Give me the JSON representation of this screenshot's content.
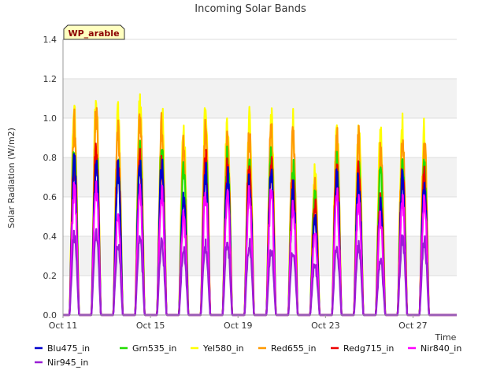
{
  "chart_data": {
    "type": "line",
    "title": "Incoming Solar Bands",
    "xlabel": "Time",
    "ylabel": "Solar Radiation (W/m2)",
    "ylim": [
      0,
      1.4
    ],
    "xlim": [
      "2023-10-11",
      "2023-10-29"
    ],
    "y_ticks": [
      "0.0",
      "0.2",
      "0.4",
      "0.6",
      "0.8",
      "1.0",
      "1.2",
      "1.4"
    ],
    "x_ticks": [
      {
        "label": "Oct 11",
        "date": "2023-10-11"
      },
      {
        "label": "Oct 15",
        "date": "2023-10-15"
      },
      {
        "label": "Oct 19",
        "date": "2023-10-19"
      },
      {
        "label": "Oct 23",
        "date": "2023-10-23"
      },
      {
        "label": "Oct 27",
        "date": "2023-10-27"
      }
    ],
    "grid": "horizontal bands",
    "legend_position": "bottom",
    "station_label": "WP_arable",
    "days": [
      "Oct 11",
      "Oct 12",
      "Oct 13",
      "Oct 14",
      "Oct 15",
      "Oct 16",
      "Oct 17",
      "Oct 18",
      "Oct 19",
      "Oct 20",
      "Oct 21",
      "Oct 22",
      "Oct 23",
      "Oct 24",
      "Oct 25",
      "Oct 26",
      "Oct 27",
      "Oct 28"
    ],
    "series": [
      {
        "name": "Yel580_in",
        "color": "#ffff00",
        "daily_peak": [
          1.14,
          1.18,
          1.1,
          1.15,
          1.13,
          1.0,
          1.13,
          1.1,
          1.06,
          1.09,
          1.05,
          0.81,
          1.06,
          1.04,
          0.99,
          1.05,
          1.04,
          0.0
        ]
      },
      {
        "name": "Red655_in",
        "color": "#ff9900",
        "daily_peak": [
          1.05,
          1.1,
          1.01,
          1.07,
          1.05,
          0.93,
          1.05,
          1.02,
          0.99,
          1.02,
          0.98,
          0.75,
          0.99,
          0.97,
          0.9,
          0.97,
          0.96,
          0.0
        ]
      },
      {
        "name": "Grn535_in",
        "color": "#22dd00",
        "daily_peak": [
          0.91,
          0.95,
          0.86,
          0.92,
          0.91,
          0.8,
          0.9,
          0.88,
          0.85,
          0.88,
          0.82,
          0.65,
          0.84,
          0.82,
          0.78,
          0.82,
          0.81,
          0.0
        ]
      },
      {
        "name": "Redg715_in",
        "color": "#ee0000",
        "daily_peak": [
          0.87,
          0.91,
          0.83,
          0.86,
          0.86,
          0.66,
          0.86,
          0.85,
          0.85,
          0.83,
          0.72,
          0.6,
          0.79,
          0.79,
          0.66,
          0.79,
          0.77,
          0.0
        ]
      },
      {
        "name": "Blu475_in",
        "color": "#0000cc",
        "daily_peak": [
          0.83,
          0.87,
          0.79,
          0.81,
          0.83,
          0.63,
          0.8,
          0.78,
          0.76,
          0.79,
          0.69,
          0.55,
          0.76,
          0.76,
          0.62,
          0.75,
          0.73,
          0.0
        ]
      },
      {
        "name": "Nir840_in",
        "color": "#ff00ff",
        "daily_peak": [
          0.7,
          0.72,
          0.56,
          0.69,
          0.68,
          0.55,
          0.68,
          0.68,
          0.67,
          0.67,
          0.62,
          0.45,
          0.66,
          0.65,
          0.54,
          0.64,
          0.64,
          0.0
        ]
      },
      {
        "name": "Nir945_in",
        "color": "#9a1fd4",
        "daily_peak": [
          0.44,
          0.46,
          0.4,
          0.42,
          0.4,
          0.36,
          0.39,
          0.41,
          0.4,
          0.36,
          0.36,
          0.28,
          0.38,
          0.38,
          0.3,
          0.43,
          0.42,
          0.0
        ]
      }
    ]
  },
  "legend": {
    "row1": [
      "Blu475_in",
      "Grn535_in",
      "Yel580_in",
      "Red655_in",
      "Redg715_in",
      "Nir840_in"
    ],
    "row2": [
      "Nir945_in"
    ]
  }
}
